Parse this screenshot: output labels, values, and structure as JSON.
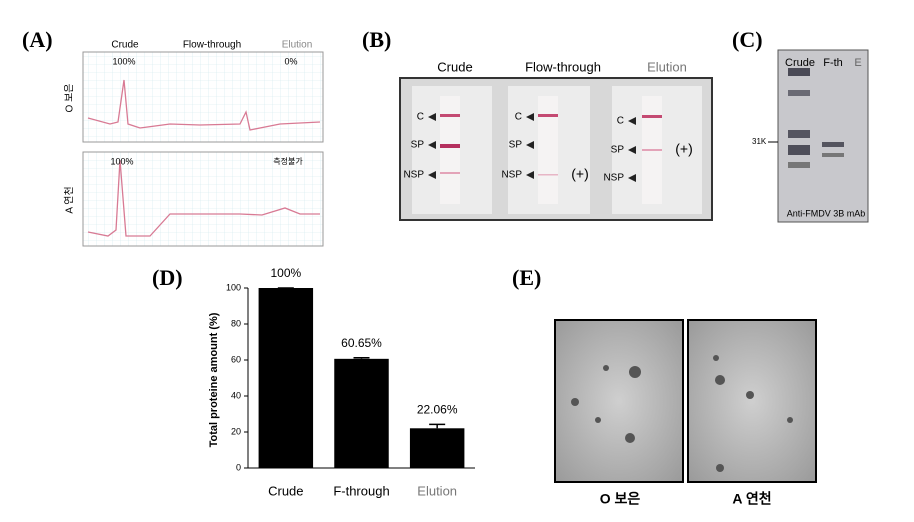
{
  "panel_a": {
    "label": "(A)",
    "columns": [
      "Crude",
      "Flow-through",
      "Elution"
    ],
    "top_left_pct": "100%",
    "top_right_pct": "0%",
    "bottom_left_pct": "100%",
    "bottom_right_note": "측정불가",
    "rows": [
      "O 보은",
      "A 연천"
    ]
  },
  "panel_b": {
    "label": "(B)",
    "columns": [
      "Crude",
      "Flow-through",
      "Elution"
    ],
    "strip_labels": [
      "C",
      "SP",
      "NSP"
    ],
    "positive_marks": [
      "(+)",
      "(+)"
    ]
  },
  "panel_c": {
    "label": "(C)",
    "lanes": [
      "Crude",
      "F-th",
      "E"
    ],
    "marker": "31K",
    "antibody": "Anti-FMDV 3B mAb"
  },
  "panel_d_label": "(D)",
  "chart_data": {
    "type": "bar",
    "categories": [
      "Crude",
      "F-through",
      "Elution"
    ],
    "values": [
      100,
      60.65,
      22.06
    ],
    "value_labels": [
      "100%",
      "60.65%",
      "22.06%"
    ],
    "errors": [
      0,
      0.6,
      2.2
    ],
    "color": "#000000",
    "ylabel": "Total proteine amount (%)",
    "ylim": [
      0,
      100
    ],
    "yticks": [
      0,
      20,
      40,
      60,
      80,
      100
    ]
  },
  "panel_e": {
    "label": "(E)",
    "images": [
      "O 보은",
      "A 연천"
    ]
  }
}
